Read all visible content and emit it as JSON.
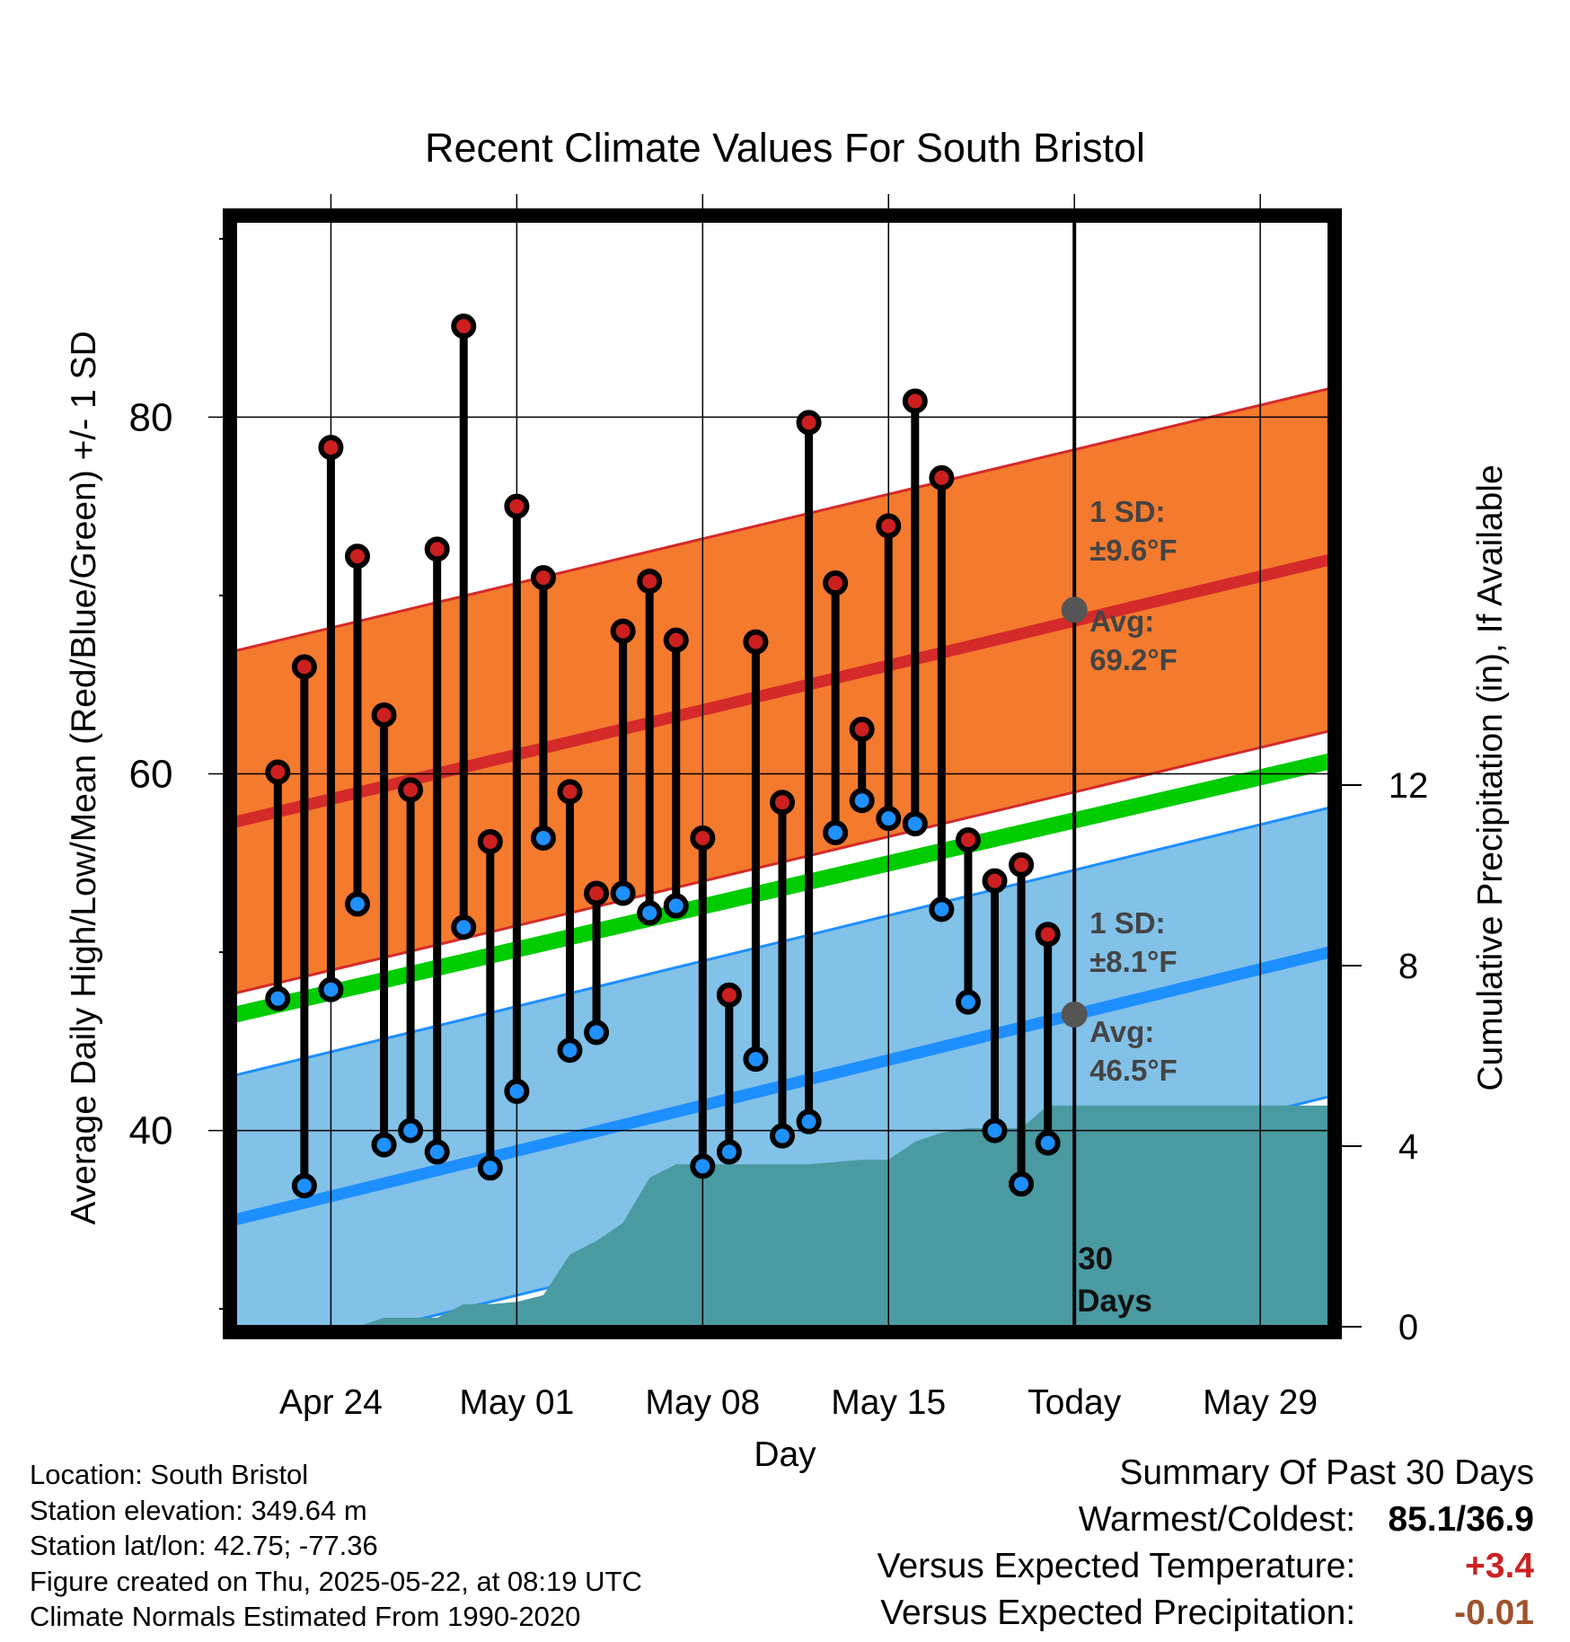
{
  "chart_data": {
    "type": "scatter",
    "title": "Recent Climate Values For South Bristol",
    "xlabel": "Day",
    "ylabel_left": "Average Daily High/Low/Mean (Red/Blue/Green) +/- 1 SD",
    "ylabel_right": "Cumulative Precipitation (in), If Available",
    "x_ticks": [
      "Apr 24",
      "May 01",
      "May 08",
      "May 15",
      "Today",
      "May 29"
    ],
    "y_left_ticks": [
      "40",
      "60",
      "80"
    ],
    "y_left_range": [
      29,
      91
    ],
    "y_right_ticks": [
      "0",
      "4",
      "8",
      "12"
    ],
    "y_right_range": [
      0,
      24.5
    ],
    "x_range_days_from_apr21": [
      -0.6,
      40.6
    ],
    "today_day": 31,
    "days": [
      "Apr 22",
      "Apr 23",
      "Apr 24",
      "Apr 25",
      "Apr 26",
      "Apr 27",
      "Apr 28",
      "Apr 29",
      "Apr 30",
      "May 01",
      "May 02",
      "May 03",
      "May 04",
      "May 05",
      "May 06",
      "May 07",
      "May 08",
      "May 09",
      "May 10",
      "May 11",
      "May 12",
      "May 13",
      "May 14",
      "May 15",
      "May 16",
      "May 17",
      "May 18",
      "May 19",
      "May 20",
      "May 21"
    ],
    "series": [
      {
        "name": "High",
        "color": "#cc1f1f",
        "values": [
          60.1,
          66.0,
          78.3,
          72.2,
          63.3,
          59.1,
          72.6,
          85.1,
          56.2,
          75.0,
          71.0,
          59.0,
          53.3,
          68.0,
          70.8,
          67.5,
          56.4,
          47.6,
          67.4,
          58.4,
          79.7,
          70.7,
          62.5,
          73.9,
          80.9,
          76.6,
          56.3,
          54.0,
          54.9,
          51.0
        ]
      },
      {
        "name": "Low",
        "color": "#1e90ff",
        "values": [
          47.4,
          36.9,
          47.9,
          52.7,
          39.2,
          40.0,
          38.8,
          51.4,
          37.9,
          42.2,
          56.4,
          44.5,
          45.5,
          53.3,
          52.2,
          52.6,
          38.0,
          38.8,
          44.0,
          39.7,
          40.5,
          56.7,
          58.5,
          57.5,
          57.2,
          52.4,
          47.2,
          40.0,
          37.0,
          39.3
        ]
      }
    ],
    "normals": {
      "high_avg_today": "69.2",
      "high_sd": "9.6",
      "low_avg_today": "46.5",
      "low_sd": "8.1",
      "high_avg_line": {
        "start": 57.3,
        "end": 72.0
      },
      "low_avg_line": {
        "start": 35.0,
        "end": 50.0
      },
      "mean_line": {
        "start": 46.5,
        "end": 60.7
      },
      "high_color": "#f47a2e",
      "high_line_color": "#d42a2a",
      "low_color": "#82c1e8",
      "low_line_color": "#1e8fff",
      "mean_color": "#00cc00"
    },
    "precip_cumulative": {
      "color": "#4a9aa2",
      "days": [
        1,
        2,
        3,
        4,
        5,
        6,
        7,
        8,
        9,
        10,
        11,
        12,
        13,
        14,
        15,
        16,
        17,
        18,
        19,
        20,
        21,
        22,
        23,
        24,
        25,
        26,
        27,
        28,
        29,
        30,
        31,
        40.6
      ],
      "values": [
        0.0,
        0.0,
        0.0,
        0.0,
        0.2,
        0.2,
        0.2,
        0.5,
        0.5,
        0.55,
        0.7,
        1.6,
        1.9,
        2.3,
        3.3,
        3.6,
        3.6,
        3.6,
        3.6,
        3.6,
        3.6,
        3.65,
        3.7,
        3.7,
        4.1,
        4.3,
        4.4,
        4.4,
        4.4,
        4.9,
        4.9,
        4.9
      ]
    },
    "labels": {
      "sd_prefix": "1 SD:",
      "avg_prefix": "Avg:",
      "degree_unit": "°F",
      "days_count": "30",
      "days_word": "Days"
    },
    "grid": true
  },
  "info": {
    "location": "Location: South Bristol",
    "elevation": "Station elevation: 349.64 m",
    "latlon": "Station lat/lon: 42.75; -77.36",
    "created": "Figure created on Thu, 2025-05-22, at 08:19 UTC",
    "normals": "Climate Normals Estimated From 1990-2020"
  },
  "summary": {
    "heading": "Summary Of Past 30 Days",
    "warmest_label": "Warmest/Coldest:",
    "warmest_value": "85.1/36.9",
    "temp_label": "Versus Expected Temperature:",
    "temp_value": "+3.4",
    "temp_color": "#cc2222",
    "precip_label": "Versus Expected Precipitation:",
    "precip_value": "-0.01",
    "precip_color": "#a0522d"
  }
}
